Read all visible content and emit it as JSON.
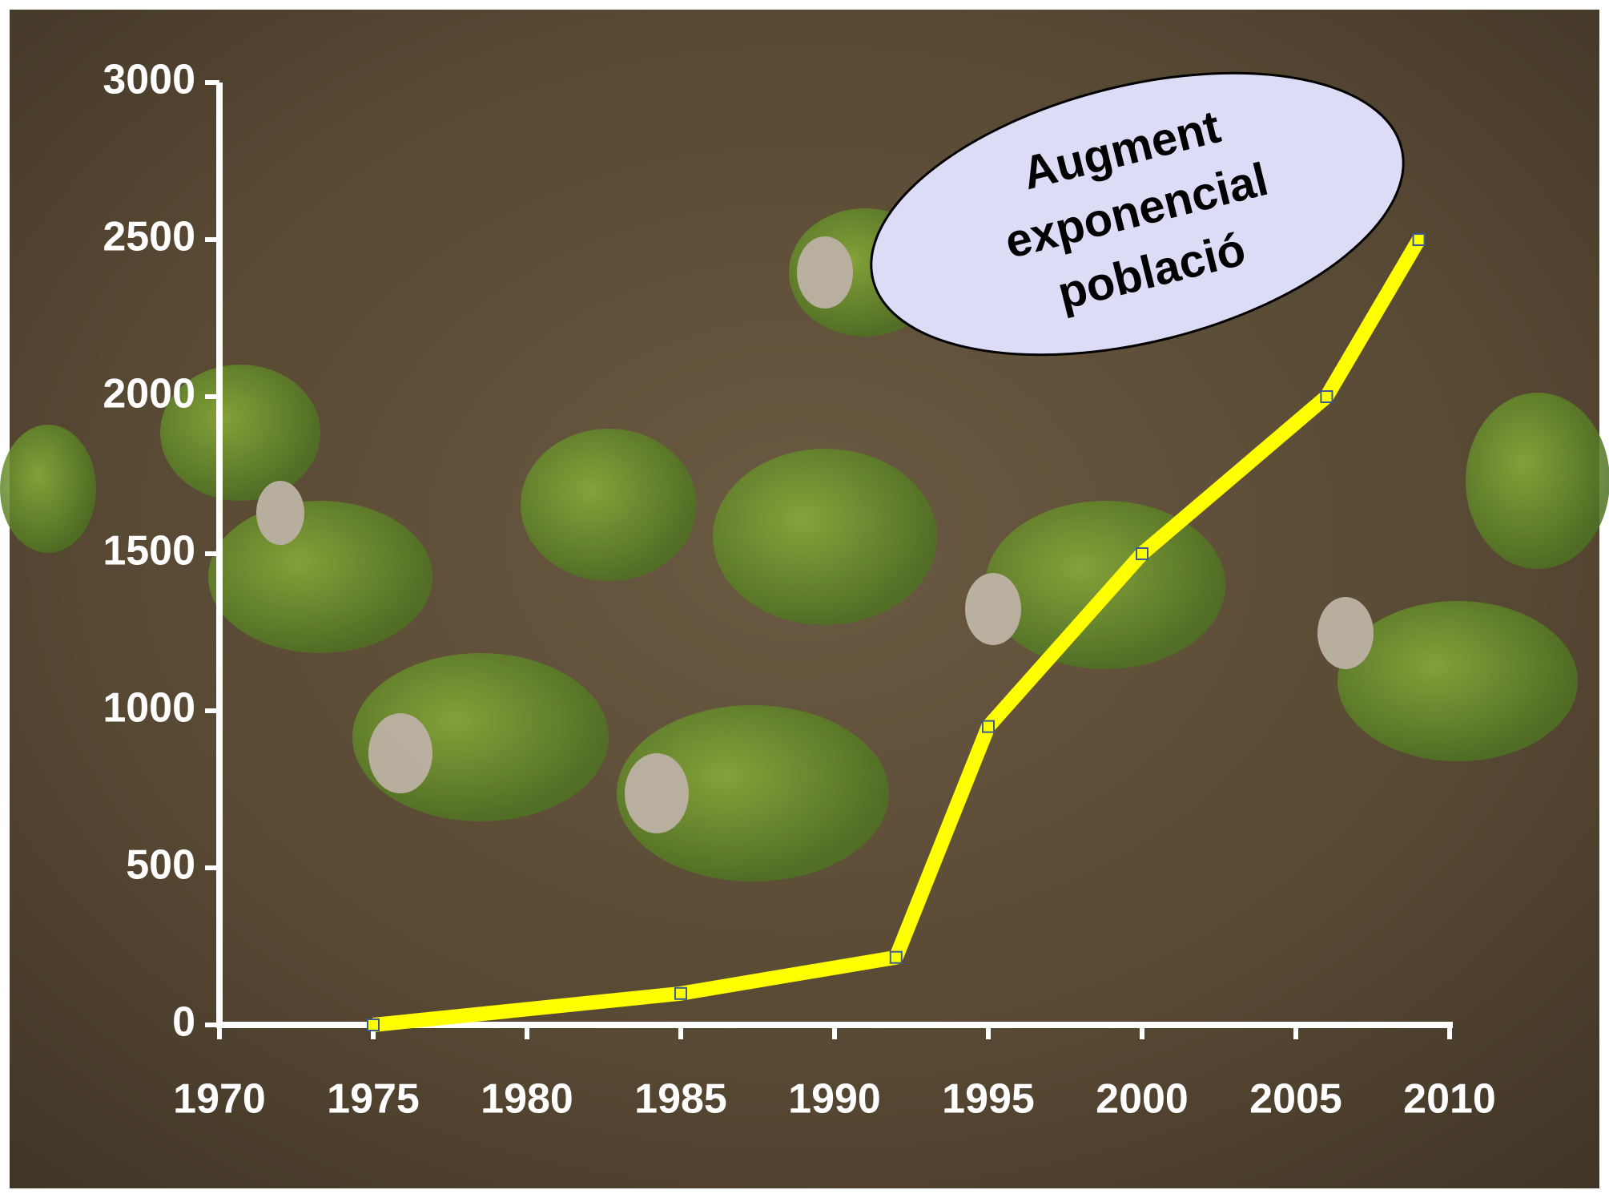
{
  "chart_data": {
    "type": "line",
    "annotation": [
      "Augment",
      "exponencial",
      "població"
    ],
    "x": [
      1975,
      1985,
      1992,
      1995,
      2000,
      2006,
      2009
    ],
    "series": [
      {
        "color": "#ffff00",
        "values": [
          0,
          100,
          215,
          950,
          1500,
          2000,
          2500
        ]
      }
    ],
    "xlim": [
      1970,
      2010
    ],
    "xticks": [
      1970,
      1975,
      1980,
      1985,
      1990,
      1995,
      2000,
      2005,
      2010
    ],
    "ylim": [
      0,
      3000
    ],
    "yticks": [
      0,
      500,
      1000,
      1500,
      2000,
      2500,
      3000
    ],
    "grid": false
  }
}
